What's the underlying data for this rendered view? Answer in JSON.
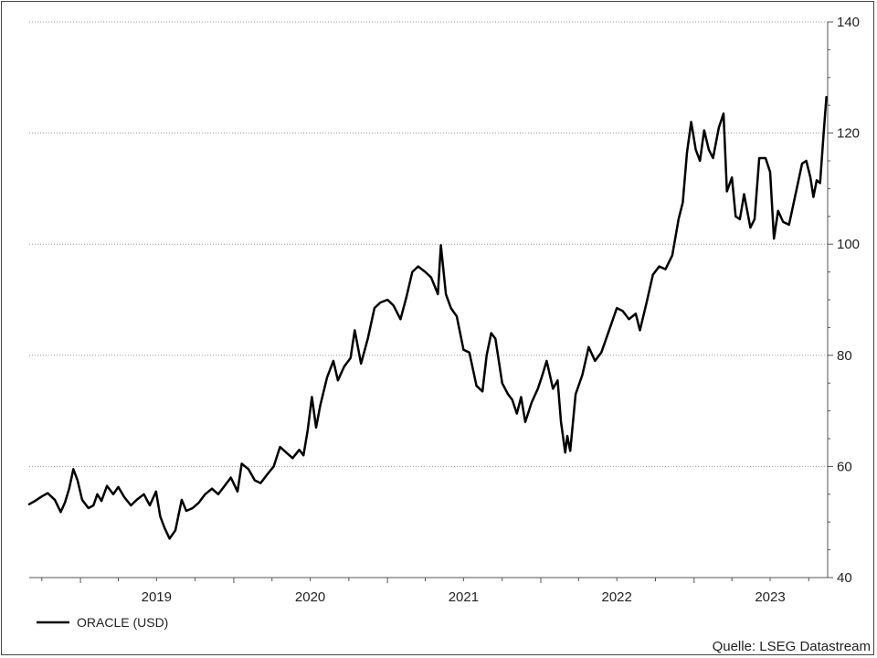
{
  "chart_data": {
    "type": "line",
    "series": [
      {
        "name": "ORACLE (USD)",
        "color": "#000000",
        "points": [
          [
            "2018-09-01",
            53.2
          ],
          [
            "2018-09-15",
            53.8
          ],
          [
            "2018-10-01",
            54.6
          ],
          [
            "2018-10-15",
            55.2
          ],
          [
            "2018-11-01",
            54.0
          ],
          [
            "2018-11-15",
            51.8
          ],
          [
            "2018-11-25",
            53.5
          ],
          [
            "2018-12-05",
            56.0
          ],
          [
            "2018-12-15",
            59.5
          ],
          [
            "2018-12-25",
            57.5
          ],
          [
            "2019-01-05",
            54.0
          ],
          [
            "2019-01-20",
            52.5
          ],
          [
            "2019-02-01",
            53.0
          ],
          [
            "2019-02-10",
            55.0
          ],
          [
            "2019-02-20",
            53.8
          ],
          [
            "2019-03-05",
            56.5
          ],
          [
            "2019-03-20",
            55.0
          ],
          [
            "2019-04-01",
            56.3
          ],
          [
            "2019-04-15",
            54.5
          ],
          [
            "2019-05-01",
            53.0
          ],
          [
            "2019-05-15",
            54.0
          ],
          [
            "2019-06-01",
            55.0
          ],
          [
            "2019-06-15",
            53.0
          ],
          [
            "2019-06-30",
            55.5
          ],
          [
            "2019-07-10",
            51.0
          ],
          [
            "2019-07-20",
            49.0
          ],
          [
            "2019-08-01",
            47.0
          ],
          [
            "2019-08-15",
            48.5
          ],
          [
            "2019-08-30",
            54.0
          ],
          [
            "2019-09-10",
            52.0
          ],
          [
            "2019-09-25",
            52.5
          ],
          [
            "2019-10-10",
            53.5
          ],
          [
            "2019-10-25",
            55.0
          ],
          [
            "2019-11-10",
            56.0
          ],
          [
            "2019-11-25",
            55.0
          ],
          [
            "2019-12-10",
            56.5
          ],
          [
            "2019-12-25",
            58.0
          ],
          [
            "2020-01-10",
            55.5
          ],
          [
            "2020-01-20",
            60.5
          ],
          [
            "2020-02-05",
            59.5
          ],
          [
            "2020-02-20",
            57.5
          ],
          [
            "2020-03-05",
            57.0
          ],
          [
            "2020-03-20",
            58.5
          ],
          [
            "2020-04-05",
            60.0
          ],
          [
            "2020-04-20",
            63.5
          ],
          [
            "2020-05-05",
            62.5
          ],
          [
            "2020-05-20",
            61.5
          ],
          [
            "2020-06-05",
            63.0
          ],
          [
            "2020-06-15",
            62.0
          ],
          [
            "2020-06-25",
            66.5
          ],
          [
            "2020-07-05",
            72.5
          ],
          [
            "2020-07-15",
            67.0
          ],
          [
            "2020-07-25",
            71.0
          ],
          [
            "2020-08-10",
            76.0
          ],
          [
            "2020-08-25",
            79.0
          ],
          [
            "2020-09-05",
            75.5
          ],
          [
            "2020-09-20",
            78.0
          ],
          [
            "2020-10-05",
            79.5
          ],
          [
            "2020-10-15",
            84.5
          ],
          [
            "2020-10-30",
            78.5
          ],
          [
            "2020-11-15",
            83.0
          ],
          [
            "2020-12-01",
            88.5
          ],
          [
            "2020-12-15",
            89.5
          ],
          [
            "2021-01-01",
            90.0
          ],
          [
            "2021-01-15",
            89.0
          ],
          [
            "2021-02-01",
            86.5
          ],
          [
            "2021-02-15",
            90.5
          ],
          [
            "2021-03-01",
            95.0
          ],
          [
            "2021-03-15",
            96.0
          ],
          [
            "2021-04-01",
            95.0
          ],
          [
            "2021-04-15",
            94.0
          ],
          [
            "2021-05-01",
            91.0
          ],
          [
            "2021-05-08",
            99.8
          ],
          [
            "2021-05-20",
            91.0
          ],
          [
            "2021-06-01",
            88.5
          ],
          [
            "2021-06-15",
            87.0
          ],
          [
            "2021-07-01",
            81.0
          ],
          [
            "2021-07-15",
            80.5
          ],
          [
            "2021-08-01",
            74.5
          ],
          [
            "2021-08-15",
            73.5
          ],
          [
            "2021-08-25",
            80.0
          ],
          [
            "2021-09-05",
            84.0
          ],
          [
            "2021-09-15",
            83.0
          ],
          [
            "2021-10-01",
            75.0
          ],
          [
            "2021-10-15",
            73.0
          ],
          [
            "2021-10-25",
            72.0
          ],
          [
            "2021-11-05",
            69.5
          ],
          [
            "2021-11-15",
            72.5
          ],
          [
            "2021-11-25",
            68.0
          ],
          [
            "2021-12-10",
            71.5
          ],
          [
            "2021-12-25",
            74.0
          ],
          [
            "2022-01-05",
            76.5
          ],
          [
            "2022-01-15",
            79.0
          ],
          [
            "2022-01-30",
            74.0
          ],
          [
            "2022-02-10",
            75.5
          ],
          [
            "2022-02-18",
            68.0
          ],
          [
            "2022-02-28",
            62.5
          ],
          [
            "2022-03-05",
            65.5
          ],
          [
            "2022-03-12",
            62.8
          ],
          [
            "2022-03-25",
            73.0
          ],
          [
            "2022-04-10",
            76.5
          ],
          [
            "2022-04-25",
            81.5
          ],
          [
            "2022-05-10",
            79.0
          ],
          [
            "2022-05-25",
            80.5
          ],
          [
            "2022-06-15",
            85.0
          ],
          [
            "2022-07-01",
            88.5
          ],
          [
            "2022-07-15",
            88.0
          ],
          [
            "2022-07-30",
            86.5
          ],
          [
            "2022-08-15",
            87.5
          ],
          [
            "2022-08-25",
            84.5
          ],
          [
            "2022-09-10",
            89.5
          ],
          [
            "2022-09-25",
            94.5
          ],
          [
            "2022-10-10",
            96.0
          ],
          [
            "2022-10-25",
            95.5
          ],
          [
            "2022-11-10",
            98.0
          ],
          [
            "2022-11-25",
            104.5
          ],
          [
            "2022-12-05",
            107.5
          ],
          [
            "2022-12-15",
            116.5
          ],
          [
            "2022-12-25",
            122.0
          ],
          [
            "2023-01-05",
            117.0
          ],
          [
            "2023-01-15",
            115.0
          ],
          [
            "2023-01-25",
            120.5
          ],
          [
            "2023-02-05",
            117.0
          ],
          [
            "2023-02-15",
            115.5
          ],
          [
            "2023-03-01",
            121.0
          ],
          [
            "2023-03-12",
            123.5
          ],
          [
            "2023-03-20",
            109.5
          ],
          [
            "2023-04-01",
            112.0
          ],
          [
            "2023-04-10",
            105.0
          ],
          [
            "2023-04-20",
            104.5
          ],
          [
            "2023-04-30",
            109.0
          ],
          [
            "2023-05-15",
            103.0
          ],
          [
            "2023-05-25",
            104.5
          ],
          [
            "2023-06-05",
            115.5
          ],
          [
            "2023-06-20",
            115.5
          ],
          [
            "2023-07-01",
            113.0
          ],
          [
            "2023-07-10",
            101.0
          ],
          [
            "2023-07-20",
            106.0
          ],
          [
            "2023-08-01",
            104.0
          ],
          [
            "2023-08-15",
            103.5
          ],
          [
            "2023-09-01",
            109.5
          ],
          [
            "2023-09-15",
            114.5
          ],
          [
            "2023-09-25",
            115.0
          ],
          [
            "2023-10-05",
            112.0
          ],
          [
            "2023-10-12",
            108.5
          ],
          [
            "2023-10-20",
            111.5
          ],
          [
            "2023-10-28",
            111.0
          ],
          [
            "2023-11-05",
            119.5
          ],
          [
            "2023-11-12",
            126.5
          ]
        ]
      }
    ],
    "x_tick_labels": [
      "2019",
      "2020",
      "2021",
      "2022",
      "2023"
    ],
    "x_range": [
      "2018-09-01",
      "2023-11-15"
    ],
    "y_ticks": [
      40,
      60,
      80,
      100,
      120,
      140
    ],
    "y_tick_labels": [
      "40",
      "60",
      "80",
      "100",
      "120",
      "140"
    ],
    "ylim": [
      40,
      140
    ],
    "y_axis_side": "right",
    "grid": "horizontal-dotted",
    "legend_label": "ORACLE (USD)",
    "legend_placement": "bottom-left",
    "source": "Quelle: LSEG Datastream"
  }
}
